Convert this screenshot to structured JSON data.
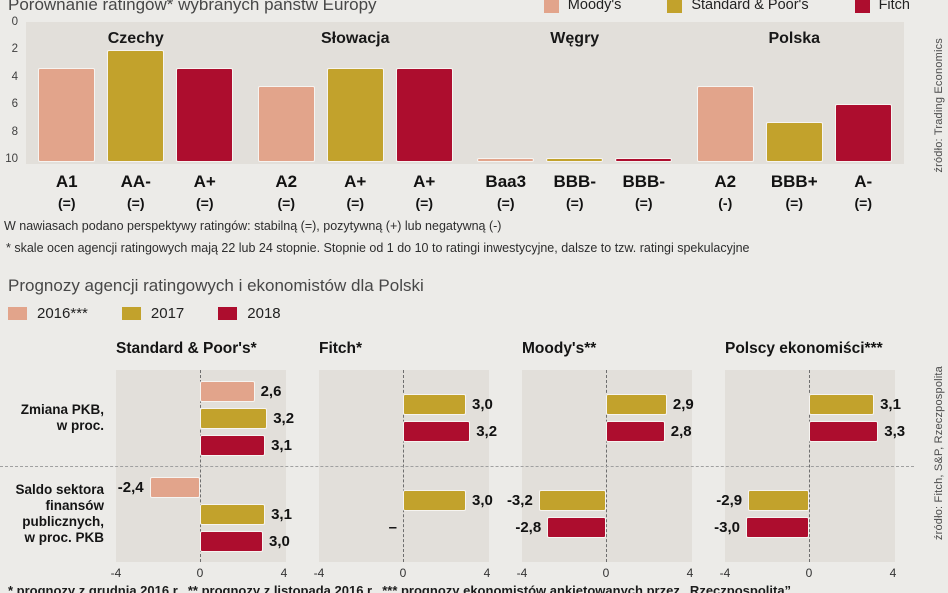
{
  "colors": {
    "panel": "#e2dfda",
    "page": "#ecebe8"
  },
  "chart_data": [
    {
      "type": "bar",
      "title": "Porównanie ratingów* wybranych państw Europy",
      "legend": [
        {
          "label": "Moody's",
          "color": "#e2a48b"
        },
        {
          "label": "Standard & Poor's",
          "color": "#c2a22c"
        },
        {
          "label": "Fitch",
          "color": "#ad0d2e"
        }
      ],
      "legend_position": "top-right",
      "y_axis": {
        "ticks": [
          0,
          2,
          4,
          6,
          8,
          10
        ],
        "range": [
          0,
          10
        ],
        "inverted": true
      },
      "groups": [
        {
          "country": "Czechy",
          "bars": [
            {
              "agency": "Moody's",
              "rating": "A1",
              "outlook": "(=)",
              "step": 5
            },
            {
              "agency": "Standard & Poor's",
              "rating": "AA-",
              "outlook": "(=)",
              "step": 4
            },
            {
              "agency": "Fitch",
              "rating": "A+",
              "outlook": "(=)",
              "step": 5
            }
          ]
        },
        {
          "country": "Słowacja",
          "bars": [
            {
              "agency": "Moody's",
              "rating": "A2",
              "outlook": "(=)",
              "step": 6
            },
            {
              "agency": "Standard & Poor's",
              "rating": "A+",
              "outlook": "(=)",
              "step": 5
            },
            {
              "agency": "Fitch",
              "rating": "A+",
              "outlook": "(=)",
              "step": 5
            }
          ]
        },
        {
          "country": "Węgry",
          "bars": [
            {
              "agency": "Moody's",
              "rating": "Baa3",
              "outlook": "(=)",
              "step": 10
            },
            {
              "agency": "Standard & Poor's",
              "rating": "BBB-",
              "outlook": "(=)",
              "step": 10
            },
            {
              "agency": "Fitch",
              "rating": "BBB-",
              "outlook": "(=)",
              "step": 10
            }
          ]
        },
        {
          "country": "Polska",
          "bars": [
            {
              "agency": "Moody's",
              "rating": "A2",
              "outlook": "(-)",
              "step": 6
            },
            {
              "agency": "Standard & Poor's",
              "rating": "BBB+",
              "outlook": "(=)",
              "step": 8
            },
            {
              "agency": "Fitch",
              "rating": "A-",
              "outlook": "(=)",
              "step": 7
            }
          ]
        }
      ],
      "footnotes": [
        "W nawiasach podano perspektywy ratingów: stabilną (=), pozytywną (+) lub negatywną (-)",
        "* skale ocen agencji ratingowych mają 22 lub 24 stopnie. Stopnie od 1 do 10 to ratingi inwestycyjne, dalsze to tzw. ratingi spekulacyjne"
      ],
      "source": "źródło: Trading Economics"
    },
    {
      "type": "bar-horizontal",
      "title": "Prognozy agencji ratingowych i ekonomistów dla Polski",
      "legend": [
        {
          "label": "2016***",
          "year": "2016",
          "color": "#e2a48b"
        },
        {
          "label": "2017",
          "year": "2017",
          "color": "#c2a22c"
        },
        {
          "label": "2018",
          "year": "2018",
          "color": "#ad0d2e"
        }
      ],
      "x_axis": {
        "ticks": [
          "-4",
          "0",
          "4"
        ],
        "range": [
          -4,
          4
        ]
      },
      "rows": [
        {
          "key": "pkb",
          "label_lines": [
            "Zmiana PKB,",
            "w proc."
          ]
        },
        {
          "key": "saldo",
          "label_lines": [
            "Saldo sektora",
            "finansów",
            "publicznych,",
            "w proc. PKB"
          ]
        }
      ],
      "panels": [
        {
          "name": "Standard & Poor's*",
          "pkb": [
            {
              "year": "2016",
              "value": 2.6,
              "label": "2,6"
            },
            {
              "year": "2017",
              "value": 3.2,
              "label": "3,2"
            },
            {
              "year": "2018",
              "value": 3.1,
              "label": "3,1"
            }
          ],
          "saldo": [
            {
              "year": "2016",
              "value": -2.4,
              "label": "-2,4"
            },
            {
              "year": "2017",
              "value": 3.1,
              "label": "3,1"
            },
            {
              "year": "2018",
              "value": 3.0,
              "label": "3,0"
            }
          ]
        },
        {
          "name": "Fitch*",
          "pkb": [
            {
              "year": "2017",
              "value": 3.0,
              "label": "3,0"
            },
            {
              "year": "2018",
              "value": 3.2,
              "label": "3,2"
            }
          ],
          "saldo": [
            {
              "year": "2017",
              "value": 3.0,
              "label": "3,0"
            },
            {
              "year": "2018",
              "value": null,
              "label": "–"
            }
          ]
        },
        {
          "name": "Moody's**",
          "pkb": [
            {
              "year": "2017",
              "value": 2.9,
              "label": "2,9"
            },
            {
              "year": "2018",
              "value": 2.8,
              "label": "2,8"
            }
          ],
          "saldo": [
            {
              "year": "2017",
              "value": -3.2,
              "label": "-3,2"
            },
            {
              "year": "2018",
              "value": -2.8,
              "label": "-2,8"
            }
          ]
        },
        {
          "name": "Polscy ekonomiści***",
          "pkb": [
            {
              "year": "2017",
              "value": 3.1,
              "label": "3,1"
            },
            {
              "year": "2018",
              "value": 3.3,
              "label": "3,3"
            }
          ],
          "saldo": [
            {
              "year": "2017",
              "value": -2.9,
              "label": "-2,9"
            },
            {
              "year": "2018",
              "value": -3.0,
              "label": "-3,0"
            }
          ]
        }
      ],
      "source": "źródło: Fitch, S&P, Rzeczpospolita"
    }
  ],
  "footer_partial": "* prognozy z grudnia 2016 r., ** prognozy z listopada 2016 r., *** prognozy ekonomistów ankietowanych przez „Rzeczpospolitą”"
}
